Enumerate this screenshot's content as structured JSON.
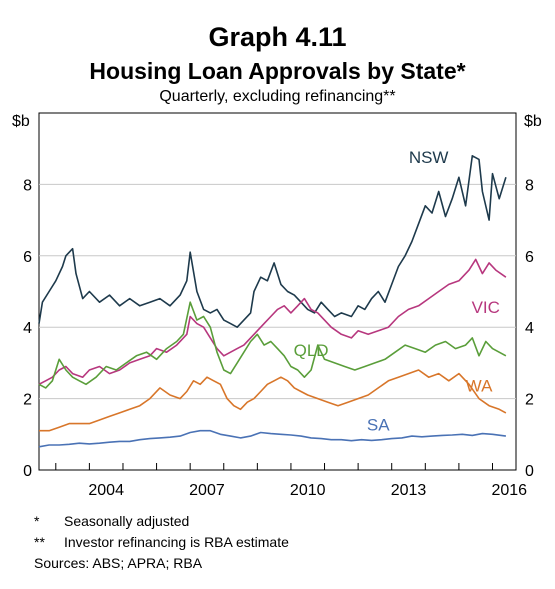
{
  "graph_label": "Graph 4.11",
  "title": "Housing Loan Approvals by State*",
  "subtitle": "Quarterly, excluding refinancing**",
  "notes": [
    {
      "mark": "*",
      "text": "Seasonally adjusted"
    },
    {
      "mark": "**",
      "text": "Investor refinancing is RBA estimate"
    }
  ],
  "sources": "Sources:   ABS; APRA; RBA",
  "chart_data": {
    "type": "line",
    "unit_left": "$b",
    "unit_right": "$b",
    "xlim": [
      2002.5,
      2016.7
    ],
    "ylim": [
      0,
      10
    ],
    "y_ticks": [
      0,
      2,
      4,
      6,
      8
    ],
    "x_ticks": [
      2004,
      2007,
      2010,
      2013,
      2016
    ],
    "x_tick_labels": [
      "2004",
      "2007",
      "2010",
      "2013",
      "2016"
    ],
    "grid": true,
    "series": [
      {
        "name": "NSW",
        "color": "#1e3a4c",
        "x": [
          2002.5,
          2002.6,
          2002.8,
          2003.0,
          2003.2,
          2003.3,
          2003.5,
          2003.6,
          2003.8,
          2004.0,
          2004.3,
          2004.6,
          2004.9,
          2005.2,
          2005.5,
          2005.8,
          2006.1,
          2006.4,
          2006.7,
          2006.9,
          2007.0,
          2007.2,
          2007.4,
          2007.6,
          2007.8,
          2008.0,
          2008.2,
          2008.4,
          2008.6,
          2008.8,
          2008.9,
          2009.1,
          2009.3,
          2009.5,
          2009.7,
          2009.9,
          2010.1,
          2010.3,
          2010.5,
          2010.7,
          2010.9,
          2011.1,
          2011.3,
          2011.5,
          2011.8,
          2012.0,
          2012.2,
          2012.4,
          2012.6,
          2012.8,
          2013.0,
          2013.2,
          2013.4,
          2013.6,
          2013.8,
          2014.0,
          2014.2,
          2014.4,
          2014.6,
          2014.8,
          2015.0,
          2015.2,
          2015.4,
          2015.6,
          2015.7,
          2015.9,
          2016.0,
          2016.2,
          2016.4
        ],
        "y": [
          4.1,
          4.7,
          5.0,
          5.3,
          5.7,
          6.0,
          6.2,
          5.5,
          4.8,
          5.0,
          4.7,
          4.9,
          4.6,
          4.8,
          4.6,
          4.7,
          4.8,
          4.6,
          4.9,
          5.3,
          6.1,
          5.0,
          4.5,
          4.4,
          4.5,
          4.2,
          4.1,
          4.0,
          4.2,
          4.4,
          5.0,
          5.4,
          5.3,
          5.8,
          5.2,
          5.0,
          4.9,
          4.7,
          4.5,
          4.4,
          4.7,
          4.5,
          4.3,
          4.4,
          4.3,
          4.6,
          4.5,
          4.8,
          5.0,
          4.7,
          5.2,
          5.7,
          6.0,
          6.4,
          6.9,
          7.4,
          7.2,
          7.8,
          7.1,
          7.6,
          8.2,
          7.4,
          8.8,
          8.7,
          7.8,
          7.0,
          8.3,
          7.6,
          8.2
        ]
      },
      {
        "name": "VIC",
        "color": "#b7377e",
        "x": [
          2002.5,
          2002.7,
          2002.9,
          2003.1,
          2003.3,
          2003.5,
          2003.8,
          2004.0,
          2004.3,
          2004.6,
          2004.9,
          2005.2,
          2005.5,
          2005.8,
          2006.0,
          2006.3,
          2006.6,
          2006.9,
          2007.0,
          2007.2,
          2007.4,
          2007.6,
          2007.8,
          2008.0,
          2008.2,
          2008.4,
          2008.6,
          2008.8,
          2009.0,
          2009.2,
          2009.4,
          2009.6,
          2009.8,
          2010.0,
          2010.2,
          2010.4,
          2010.6,
          2010.8,
          2011.0,
          2011.2,
          2011.5,
          2011.8,
          2012.0,
          2012.3,
          2012.6,
          2012.9,
          2013.2,
          2013.5,
          2013.8,
          2014.1,
          2014.4,
          2014.7,
          2015.0,
          2015.3,
          2015.5,
          2015.7,
          2015.9,
          2016.1,
          2016.4
        ],
        "y": [
          2.4,
          2.5,
          2.6,
          2.8,
          2.9,
          2.7,
          2.6,
          2.8,
          2.9,
          2.7,
          2.8,
          3.0,
          3.1,
          3.2,
          3.4,
          3.3,
          3.5,
          3.8,
          4.3,
          4.1,
          4.0,
          3.7,
          3.4,
          3.2,
          3.3,
          3.4,
          3.5,
          3.7,
          3.9,
          4.1,
          4.3,
          4.5,
          4.6,
          4.4,
          4.6,
          4.8,
          4.5,
          4.4,
          4.2,
          4.0,
          3.8,
          3.7,
          3.9,
          3.8,
          3.9,
          4.0,
          4.3,
          4.5,
          4.6,
          4.8,
          5.0,
          5.2,
          5.3,
          5.6,
          5.9,
          5.5,
          5.8,
          5.6,
          5.4
        ]
      },
      {
        "name": "QLD",
        "color": "#5a9e3a",
        "x": [
          2002.5,
          2002.7,
          2002.9,
          2003.1,
          2003.3,
          2003.5,
          2003.7,
          2003.9,
          2004.2,
          2004.5,
          2004.8,
          2005.1,
          2005.4,
          2005.7,
          2006.0,
          2006.3,
          2006.6,
          2006.8,
          2007.0,
          2007.2,
          2007.4,
          2007.6,
          2007.8,
          2008.0,
          2008.2,
          2008.4,
          2008.6,
          2008.8,
          2009.0,
          2009.2,
          2009.4,
          2009.6,
          2009.8,
          2010.0,
          2010.2,
          2010.4,
          2010.6,
          2010.8,
          2011.0,
          2011.3,
          2011.6,
          2011.9,
          2012.2,
          2012.5,
          2012.8,
          2013.1,
          2013.4,
          2013.7,
          2014.0,
          2014.3,
          2014.6,
          2014.9,
          2015.2,
          2015.4,
          2015.6,
          2015.8,
          2016.0,
          2016.2,
          2016.4
        ],
        "y": [
          2.4,
          2.3,
          2.5,
          3.1,
          2.8,
          2.6,
          2.5,
          2.4,
          2.6,
          2.9,
          2.8,
          3.0,
          3.2,
          3.3,
          3.1,
          3.4,
          3.6,
          3.8,
          4.7,
          4.2,
          4.3,
          4.0,
          3.3,
          2.8,
          2.7,
          3.0,
          3.3,
          3.6,
          3.8,
          3.5,
          3.6,
          3.4,
          3.2,
          2.9,
          2.8,
          2.6,
          2.8,
          3.5,
          3.1,
          3.0,
          2.9,
          2.8,
          2.9,
          3.0,
          3.1,
          3.3,
          3.5,
          3.4,
          3.3,
          3.5,
          3.6,
          3.4,
          3.5,
          3.7,
          3.2,
          3.6,
          3.4,
          3.3,
          3.2
        ]
      },
      {
        "name": "WA",
        "color": "#d8762a",
        "x": [
          2002.5,
          2002.8,
          2003.1,
          2003.4,
          2003.7,
          2004.0,
          2004.3,
          2004.6,
          2004.9,
          2005.2,
          2005.5,
          2005.8,
          2006.1,
          2006.4,
          2006.7,
          2006.9,
          2007.1,
          2007.3,
          2007.5,
          2007.7,
          2007.9,
          2008.1,
          2008.3,
          2008.5,
          2008.7,
          2008.9,
          2009.1,
          2009.3,
          2009.5,
          2009.7,
          2009.9,
          2010.1,
          2010.3,
          2010.5,
          2010.8,
          2011.1,
          2011.4,
          2011.7,
          2012.0,
          2012.3,
          2012.6,
          2012.9,
          2013.2,
          2013.5,
          2013.8,
          2014.1,
          2014.4,
          2014.7,
          2015.0,
          2015.3,
          2015.6,
          2015.9,
          2016.2,
          2016.4
        ],
        "y": [
          1.1,
          1.1,
          1.2,
          1.3,
          1.3,
          1.3,
          1.4,
          1.5,
          1.6,
          1.7,
          1.8,
          2.0,
          2.3,
          2.1,
          2.0,
          2.2,
          2.5,
          2.4,
          2.6,
          2.5,
          2.4,
          2.0,
          1.8,
          1.7,
          1.9,
          2.0,
          2.2,
          2.4,
          2.5,
          2.6,
          2.5,
          2.3,
          2.2,
          2.1,
          2.0,
          1.9,
          1.8,
          1.9,
          2.0,
          2.1,
          2.3,
          2.5,
          2.6,
          2.7,
          2.8,
          2.6,
          2.7,
          2.5,
          2.7,
          2.4,
          2.0,
          1.8,
          1.7,
          1.6
        ]
      },
      {
        "name": "SA",
        "color": "#4a72b5",
        "x": [
          2002.5,
          2002.8,
          2003.1,
          2003.4,
          2003.7,
          2004.0,
          2004.3,
          2004.6,
          2004.9,
          2005.2,
          2005.5,
          2005.8,
          2006.1,
          2006.4,
          2006.7,
          2007.0,
          2007.3,
          2007.6,
          2007.9,
          2008.2,
          2008.5,
          2008.8,
          2009.1,
          2009.4,
          2009.7,
          2010.0,
          2010.3,
          2010.6,
          2010.9,
          2011.2,
          2011.5,
          2011.8,
          2012.1,
          2012.4,
          2012.7,
          2013.0,
          2013.3,
          2013.6,
          2013.9,
          2014.2,
          2014.5,
          2014.8,
          2015.1,
          2015.4,
          2015.7,
          2016.0,
          2016.4
        ],
        "y": [
          0.65,
          0.7,
          0.7,
          0.72,
          0.75,
          0.73,
          0.75,
          0.78,
          0.8,
          0.8,
          0.85,
          0.88,
          0.9,
          0.92,
          0.95,
          1.05,
          1.1,
          1.1,
          1.0,
          0.95,
          0.9,
          0.95,
          1.05,
          1.02,
          1.0,
          0.98,
          0.95,
          0.9,
          0.88,
          0.85,
          0.85,
          0.82,
          0.85,
          0.83,
          0.85,
          0.88,
          0.9,
          0.95,
          0.93,
          0.95,
          0.97,
          0.98,
          1.0,
          0.97,
          1.02,
          1.0,
          0.95
        ]
      }
    ],
    "labels": [
      {
        "text": "NSW",
        "x": 2014.1,
        "y": 8.6
      },
      {
        "text": "VIC",
        "x": 2015.8,
        "y": 4.4
      },
      {
        "text": "QLD",
        "x": 2010.6,
        "y": 3.2
      },
      {
        "text": "WA",
        "x": 2015.6,
        "y": 2.2
      },
      {
        "text": "SA",
        "x": 2012.6,
        "y": 1.1
      }
    ]
  }
}
